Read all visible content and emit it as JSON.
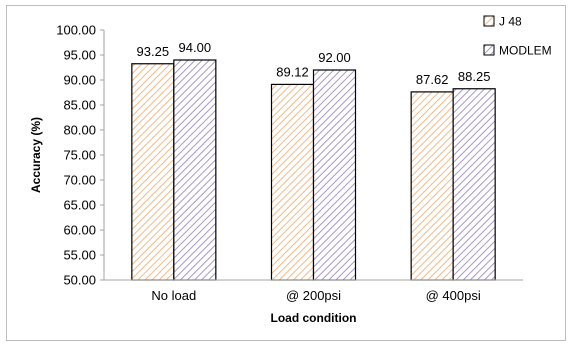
{
  "chart_data": {
    "type": "bar",
    "title": "",
    "xlabel": "Load condition",
    "ylabel": "Accuracy (%)",
    "categories": [
      "No load",
      "@ 200psi",
      "@ 400psi"
    ],
    "series": [
      {
        "name": "J 48",
        "values": [
          93.25,
          89.12,
          87.62
        ],
        "value_labels": [
          "93.25",
          "89.12",
          "87.62"
        ],
        "color": "#f2b98a",
        "pattern": "diagonal-hatch"
      },
      {
        "name": "MODLEM",
        "values": [
          94.0,
          92.0,
          88.25
        ],
        "value_labels": [
          "94.00",
          "92.00",
          "88.25"
        ],
        "color": "#a898c8",
        "pattern": "diagonal-hatch"
      }
    ],
    "ylim": [
      50,
      100
    ],
    "yticks": [
      "50.00",
      "55.00",
      "60.00",
      "65.00",
      "70.00",
      "75.00",
      "80.00",
      "85.00",
      "90.00",
      "95.00",
      "100.00"
    ],
    "grid": false,
    "legend_position": "top-right"
  }
}
